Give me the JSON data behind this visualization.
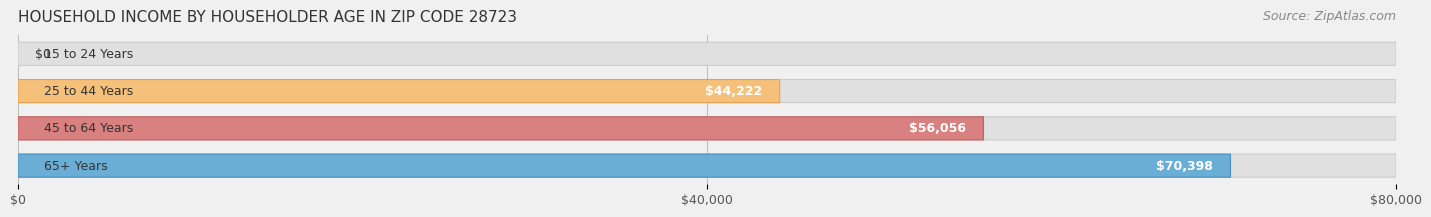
{
  "title": "HOUSEHOLD INCOME BY HOUSEHOLDER AGE IN ZIP CODE 28723",
  "source": "Source: ZipAtlas.com",
  "categories": [
    "15 to 24 Years",
    "25 to 44 Years",
    "45 to 64 Years",
    "65+ Years"
  ],
  "values": [
    0,
    44222,
    56056,
    70398
  ],
  "value_labels": [
    "$0",
    "$44,222",
    "$56,056",
    "$70,398"
  ],
  "bar_colors": [
    "#f08080",
    "#f5c07a",
    "#d98080",
    "#6aaed6"
  ],
  "bar_edge_colors": [
    "#e06060",
    "#e8a050",
    "#c06060",
    "#4a8ec0"
  ],
  "xlim": [
    0,
    80000
  ],
  "xtick_values": [
    0,
    40000,
    80000
  ],
  "xtick_labels": [
    "$0",
    "$40,000",
    "$80,000"
  ],
  "background_color": "#f0f0f0",
  "bar_bg_color": "#e8e8e8",
  "title_fontsize": 11,
  "source_fontsize": 9,
  "label_fontsize": 9,
  "value_fontsize": 9
}
